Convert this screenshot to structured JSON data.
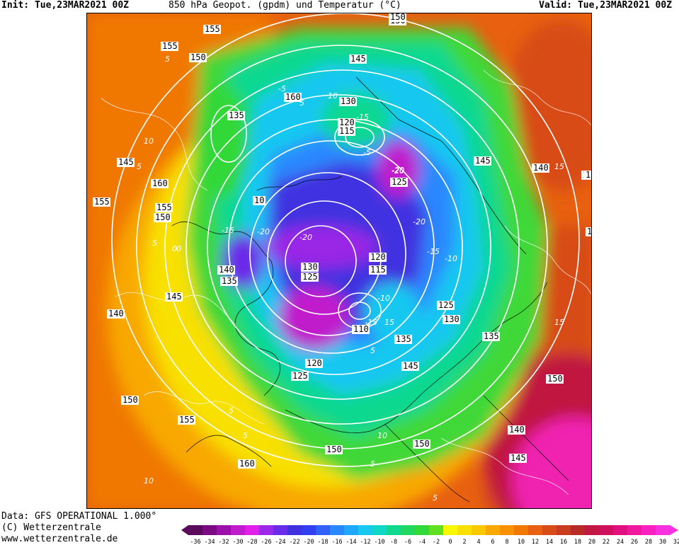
{
  "header": {
    "init": "Init: Tue,23MAR2021 00Z",
    "title": "850 hPa Geopot. (gpdm) und Temperatur (°C)",
    "valid": "Valid: Tue,23MAR2021 00Z"
  },
  "footer": {
    "data_source": "Data: GFS OPERATIONAL 1.000°",
    "copyright": "(C) Wetterzentrale",
    "website": "www.wetterzentrale.de"
  },
  "legend": {
    "ticks": [
      "-36",
      "-34",
      "-32",
      "-30",
      "-28",
      "-26",
      "-24",
      "-22",
      "-20",
      "-18",
      "-16",
      "-14",
      "-12",
      "-10",
      "-8",
      "-6",
      "-4",
      "-2",
      "0",
      "2",
      "4",
      "6",
      "8",
      "10",
      "12",
      "14",
      "16",
      "18",
      "20",
      "22",
      "24",
      "26",
      "28",
      "30",
      "32"
    ],
    "colors": [
      "#5a0a5a",
      "#7a0a82",
      "#9a10a8",
      "#c01ccc",
      "#e020e8",
      "#9a28e6",
      "#6a2ce8",
      "#4030e0",
      "#3040f0",
      "#3060f8",
      "#2a88ff",
      "#20a8ff",
      "#18c8f0",
      "#10d8c8",
      "#10d890",
      "#20d860",
      "#30d838",
      "#60e020",
      "#f8f800",
      "#f8e000",
      "#f8c800",
      "#f8a800",
      "#f89000",
      "#f07800",
      "#e86010",
      "#d84c18",
      "#c83c20",
      "#b82c28",
      "#c01840",
      "#d0105c",
      "#e0107c",
      "#f0189c",
      "#f820c0",
      "#f830e0"
    ]
  },
  "map": {
    "contour_labels": [
      {
        "text": "150"
      },
      {
        "text": "155"
      },
      {
        "text": "155"
      },
      {
        "text": "150"
      },
      {
        "text": "145"
      },
      {
        "text": "160"
      },
      {
        "text": "135"
      },
      {
        "text": "145"
      },
      {
        "text": "140"
      },
      {
        "text": "135"
      },
      {
        "text": "130"
      },
      {
        "text": "120"
      },
      {
        "text": "115"
      },
      {
        "text": "125"
      },
      {
        "text": "145"
      },
      {
        "text": "155"
      },
      {
        "text": "160"
      },
      {
        "text": "155"
      },
      {
        "text": "150"
      },
      {
        "text": "150"
      },
      {
        "text": "140"
      },
      {
        "text": "135"
      },
      {
        "text": "145"
      },
      {
        "text": "140"
      },
      {
        "text": "130"
      },
      {
        "text": "125"
      },
      {
        "text": "120"
      },
      {
        "text": "115"
      },
      {
        "text": "110"
      },
      {
        "text": "125"
      },
      {
        "text": "130"
      },
      {
        "text": "135"
      },
      {
        "text": "145"
      },
      {
        "text": "120"
      },
      {
        "text": "125"
      },
      {
        "text": "150"
      },
      {
        "text": "155"
      },
      {
        "text": "150"
      },
      {
        "text": "150"
      },
      {
        "text": "160"
      },
      {
        "text": "150"
      },
      {
        "text": "140"
      },
      {
        "text": "145"
      },
      {
        "text": "135"
      },
      {
        "text": "150"
      },
      {
        "text": "155"
      },
      {
        "text": "10"
      }
    ],
    "temp_labels": [
      "5",
      "10",
      "5",
      "5",
      "0",
      "-15",
      "-20",
      "-15",
      "-20",
      "-20",
      "-15",
      "-10",
      "-15",
      "-5",
      "5",
      "10",
      "15",
      "5",
      "10",
      "5",
      "5",
      "0",
      "15",
      "-5",
      "5",
      "15",
      "5",
      "10",
      "-10",
      "-20",
      "-20"
    ]
  }
}
